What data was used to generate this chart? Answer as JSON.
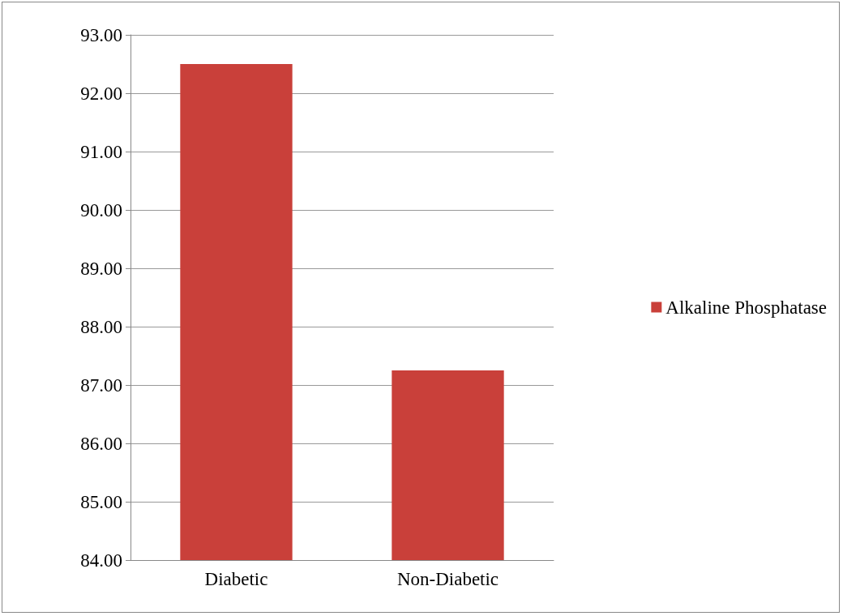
{
  "chart_data": {
    "type": "bar",
    "categories": [
      "Diabetic",
      "Non-Diabetic"
    ],
    "series": [
      {
        "name": "Alkaline Phosphatase",
        "color": "#c9403a",
        "values": [
          92.5,
          87.25
        ]
      }
    ],
    "ylim": [
      84,
      93
    ],
    "yticks": [
      {
        "value": 84,
        "label": "84.00"
      },
      {
        "value": 85,
        "label": "85.00"
      },
      {
        "value": 86,
        "label": "86.00"
      },
      {
        "value": 87,
        "label": "87.00"
      },
      {
        "value": 88,
        "label": "88.00"
      },
      {
        "value": 89,
        "label": "89.00"
      },
      {
        "value": 90,
        "label": "90.00"
      },
      {
        "value": 91,
        "label": "91.00"
      },
      {
        "value": 92,
        "label": "92.00"
      },
      {
        "value": 93,
        "label": "93.00"
      }
    ],
    "grid": "y",
    "legend": "right"
  }
}
